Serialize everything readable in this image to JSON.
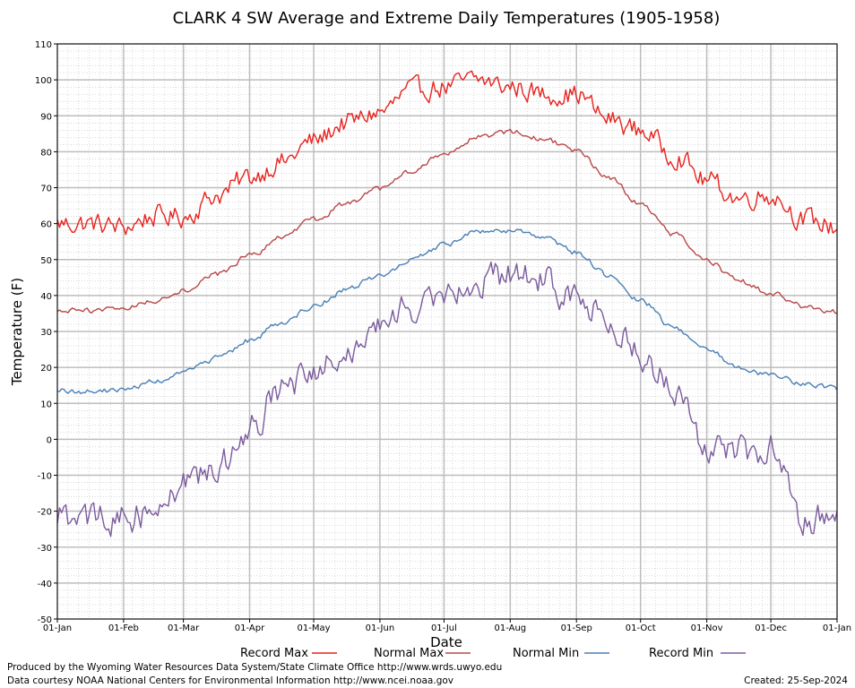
{
  "chart_data": {
    "type": "line",
    "title": "CLARK 4 SW Average and Extreme Daily Temperatures (1905-1958)",
    "xlabel": "Date",
    "ylabel": "Temperature (F)",
    "ylim": [
      -50,
      110
    ],
    "yticks": [
      110,
      100,
      90,
      80,
      70,
      60,
      50,
      40,
      30,
      20,
      10,
      0,
      -10,
      -20,
      -30,
      -40,
      -50
    ],
    "xlim": [
      0,
      365
    ],
    "xtick_days": [
      0,
      31,
      59,
      90,
      120,
      151,
      181,
      212,
      243,
      273,
      304,
      334,
      365
    ],
    "xtick_labels": [
      "01-Jan",
      "01-Feb",
      "01-Mar",
      "01-Apr",
      "01-May",
      "01-Jun",
      "01-Jul",
      "01-Aug",
      "01-Sep",
      "01-Oct",
      "01-Nov",
      "01-Dec",
      "01-Jan"
    ],
    "grid": true,
    "legend": "bottom",
    "series": [
      {
        "name": "Record Max",
        "color": "#e8231e",
        "anchors": [
          [
            0,
            60
          ],
          [
            15,
            60
          ],
          [
            31,
            59
          ],
          [
            45,
            62
          ],
          [
            59,
            62
          ],
          [
            75,
            68
          ],
          [
            90,
            73
          ],
          [
            105,
            77
          ],
          [
            120,
            83
          ],
          [
            135,
            88
          ],
          [
            151,
            91
          ],
          [
            166,
            97
          ],
          [
            181,
            98
          ],
          [
            196,
            100
          ],
          [
            212,
            98
          ],
          [
            228,
            96
          ],
          [
            243,
            96
          ],
          [
            258,
            89
          ],
          [
            273,
            86
          ],
          [
            289,
            79
          ],
          [
            304,
            72
          ],
          [
            319,
            67
          ],
          [
            334,
            68
          ],
          [
            350,
            61
          ],
          [
            365,
            59
          ]
        ],
        "noise": 3.5
      },
      {
        "name": "Normal Max",
        "color": "#b84848",
        "anchors": [
          [
            0,
            35.5
          ],
          [
            15,
            35.8
          ],
          [
            31,
            36.5
          ],
          [
            45,
            38.5
          ],
          [
            59,
            41.5
          ],
          [
            75,
            46
          ],
          [
            90,
            51
          ],
          [
            105,
            56
          ],
          [
            120,
            61
          ],
          [
            135,
            65.5
          ],
          [
            151,
            69.5
          ],
          [
            166,
            74.5
          ],
          [
            181,
            79.5
          ],
          [
            196,
            84
          ],
          [
            212,
            85.5
          ],
          [
            228,
            83.5
          ],
          [
            243,
            80
          ],
          [
            258,
            73
          ],
          [
            273,
            65.5
          ],
          [
            289,
            57
          ],
          [
            304,
            49.5
          ],
          [
            319,
            44
          ],
          [
            334,
            40.5
          ],
          [
            350,
            37
          ],
          [
            365,
            35.5
          ]
        ],
        "noise": 0.9
      },
      {
        "name": "Normal Min",
        "color": "#4a7fb5",
        "anchors": [
          [
            0,
            13.5
          ],
          [
            15,
            13.2
          ],
          [
            31,
            13.8
          ],
          [
            45,
            16
          ],
          [
            59,
            18.5
          ],
          [
            75,
            22.5
          ],
          [
            90,
            27.5
          ],
          [
            105,
            32.5
          ],
          [
            120,
            37
          ],
          [
            135,
            41.5
          ],
          [
            151,
            45.5
          ],
          [
            166,
            50
          ],
          [
            181,
            54
          ],
          [
            196,
            57.5
          ],
          [
            212,
            58
          ],
          [
            228,
            56
          ],
          [
            243,
            52
          ],
          [
            258,
            45.5
          ],
          [
            273,
            38.5
          ],
          [
            289,
            31
          ],
          [
            304,
            25
          ],
          [
            319,
            20
          ],
          [
            334,
            18
          ],
          [
            350,
            15.5
          ],
          [
            365,
            14
          ]
        ],
        "noise": 0.9
      },
      {
        "name": "Record Min",
        "color": "#7b5b9d",
        "anchors": [
          [
            0,
            -22
          ],
          [
            15,
            -22
          ],
          [
            31,
            -22
          ],
          [
            45,
            -20
          ],
          [
            59,
            -12
          ],
          [
            75,
            -8
          ],
          [
            90,
            3
          ],
          [
            105,
            14
          ],
          [
            120,
            17
          ],
          [
            135,
            25
          ],
          [
            151,
            31
          ],
          [
            166,
            37
          ],
          [
            181,
            42
          ],
          [
            196,
            44
          ],
          [
            212,
            46
          ],
          [
            228,
            44
          ],
          [
            243,
            38
          ],
          [
            258,
            33
          ],
          [
            273,
            24
          ],
          [
            289,
            14
          ],
          [
            304,
            -2
          ],
          [
            319,
            -3
          ],
          [
            334,
            -3
          ],
          [
            350,
            -22
          ],
          [
            365,
            -22
          ]
        ],
        "noise": 5
      }
    ]
  },
  "footer": {
    "left_line1": "Produced by the Wyoming Water Resources Data System/State Climate Office http://www.wrds.uwyo.edu",
    "left_line2": "Data courtesy NOAA National Centers for Environmental Information http://www.ncei.noaa.gov",
    "created": "Created:  25-Sep-2024"
  }
}
